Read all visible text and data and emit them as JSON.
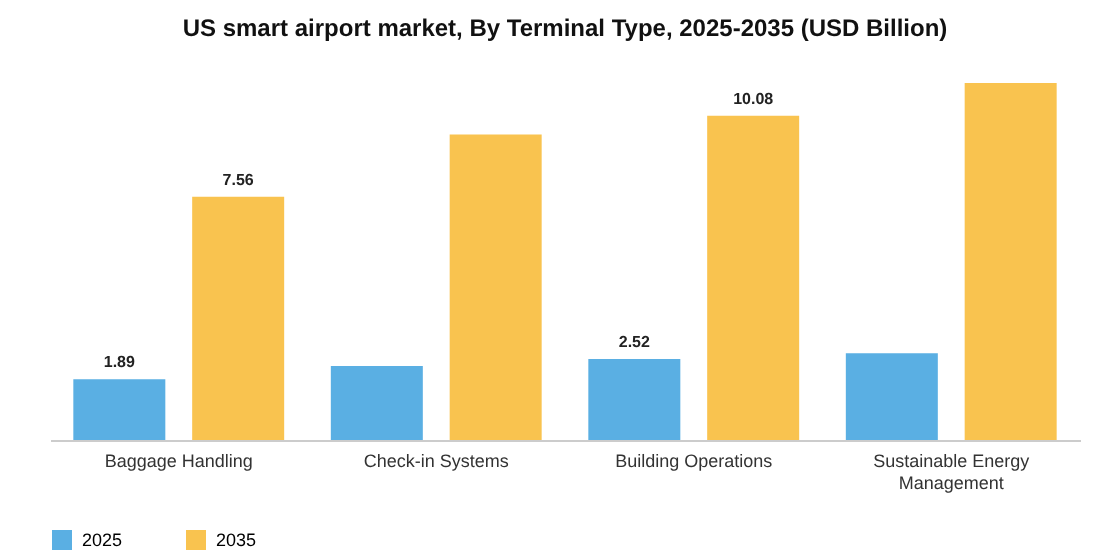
{
  "chart_data": {
    "type": "bar",
    "title": "US smart airport market, By Terminal Type, 2025-2035 (USD Billion)",
    "categories": [
      "Baggage Handling",
      "Check-in Systems",
      "Building Operations",
      "Sustainable Energy Management"
    ],
    "series": [
      {
        "name": "2025",
        "color": "#5aafe3",
        "values": [
          1.89,
          2.3,
          2.52,
          2.7
        ],
        "value_labels": [
          "1.89",
          null,
          "2.52",
          null
        ]
      },
      {
        "name": "2035",
        "color": "#f9c34f",
        "values": [
          7.56,
          9.5,
          10.08,
          11.1
        ],
        "value_labels": [
          "7.56",
          null,
          "10.08",
          null
        ]
      }
    ],
    "legend": "bottom"
  }
}
